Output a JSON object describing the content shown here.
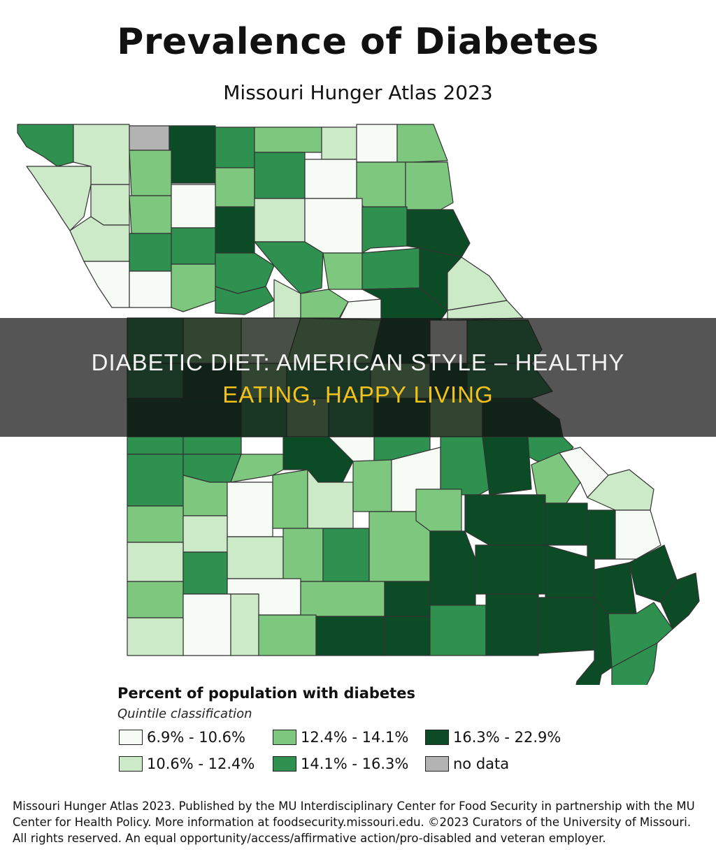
{
  "map": {
    "title": "Prevalence of Diabetes",
    "subtitle": "Missouri Hunger Atlas 2023",
    "legend": {
      "title": "Percent of population with diabetes",
      "subtitle": "Quintile classification",
      "classes": [
        {
          "label": "6.9% - 10.6%",
          "color": "#f7fbf5"
        },
        {
          "label": "10.6% - 12.4%",
          "color": "#cce9c8"
        },
        {
          "label": "12.4% - 14.1%",
          "color": "#7ec77f"
        },
        {
          "label": "14.1% - 16.3%",
          "color": "#2e9150"
        },
        {
          "label": "16.3% - 22.9%",
          "color": "#0b4b25"
        },
        {
          "label": "no data",
          "color": "#b3b3b3"
        }
      ]
    },
    "footer": "Missouri Hunger Atlas 2023. Published by the MU Interdisciplinary Center for Food Security in partnership with the MU Center for Health Policy. More information at foodsecurity.missouri.edu. ©2023 Curators of the University of Missouri. All rights reserved. An equal opportunity/access/affirmative action/pro-disabled and veteran employer."
  },
  "banner": {
    "line1": "Diabetic Diet: American Style – Healthy",
    "line2": "Eating, Happy Living"
  }
}
